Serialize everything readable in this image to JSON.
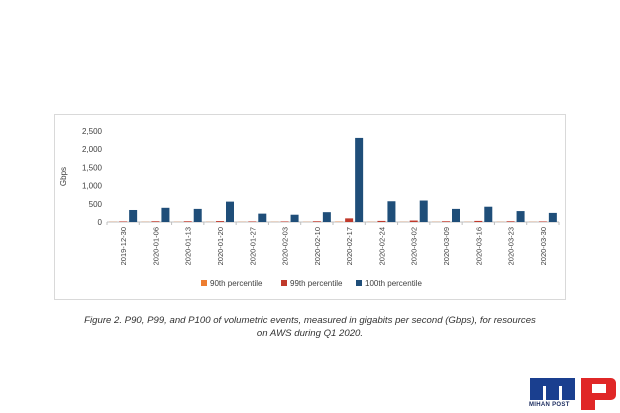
{
  "chart_data": {
    "type": "bar",
    "ylabel": "Gbps",
    "ylim": [
      0,
      2500
    ],
    "yticks": [
      "0",
      "500",
      "1,000",
      "1,500",
      "2,000",
      "2,500"
    ],
    "categories": [
      "2019-12-30",
      "2020-01-06",
      "2020-01-13",
      "2020-01-20",
      "2020-01-27",
      "2020-02-03",
      "2020-02-10",
      "2020-02-17",
      "2020-02-24",
      "2020-03-02",
      "2020-03-09",
      "2020-03-16",
      "2020-03-23",
      "2020-03-30"
    ],
    "series": [
      {
        "name": "90th percentile",
        "color": "#ed7d31",
        "values": [
          5,
          5,
          5,
          5,
          5,
          5,
          5,
          10,
          5,
          5,
          5,
          5,
          5,
          5
        ]
      },
      {
        "name": "99th percentile",
        "color": "#c0392b",
        "values": [
          15,
          20,
          20,
          25,
          15,
          15,
          20,
          100,
          30,
          40,
          20,
          30,
          20,
          15
        ]
      },
      {
        "name": "100th percentile",
        "color": "#1f4e79",
        "values": [
          330,
          390,
          360,
          560,
          230,
          200,
          270,
          2310,
          570,
          590,
          360,
          420,
          300,
          250
        ]
      }
    ],
    "legend_position": "bottom",
    "grid": false
  },
  "caption": {
    "line1": "Figure 2. P90, P99, and P100 of volumetric events, measured in gigabits per second (Gbps), for resources",
    "line2": "on AWS during Q1 2020."
  },
  "watermark": {
    "text": "MIHAN POST",
    "colors": {
      "blue": "#1a3f8f",
      "red": "#e02727"
    }
  }
}
